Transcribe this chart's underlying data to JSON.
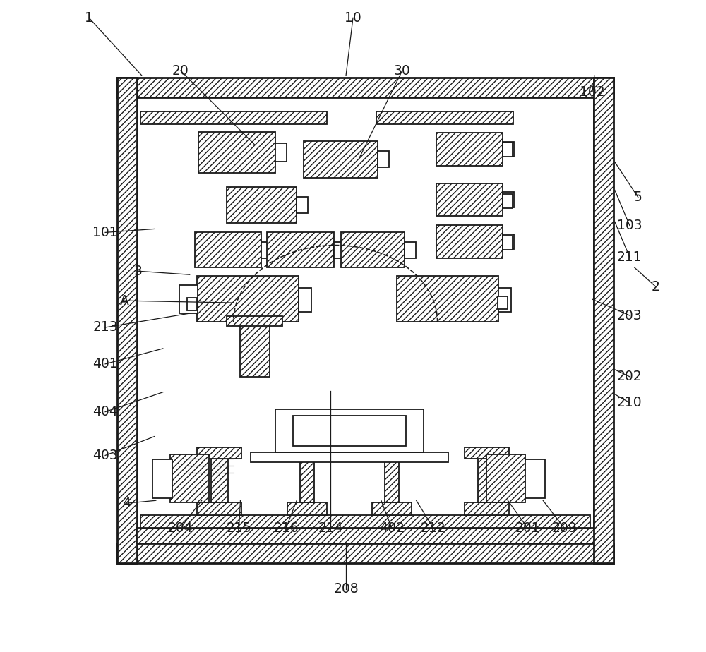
{
  "bg_color": "#ffffff",
  "lc": "#1a1a1a",
  "fig_w": 10.0,
  "fig_h": 9.24,
  "dpi": 100
}
